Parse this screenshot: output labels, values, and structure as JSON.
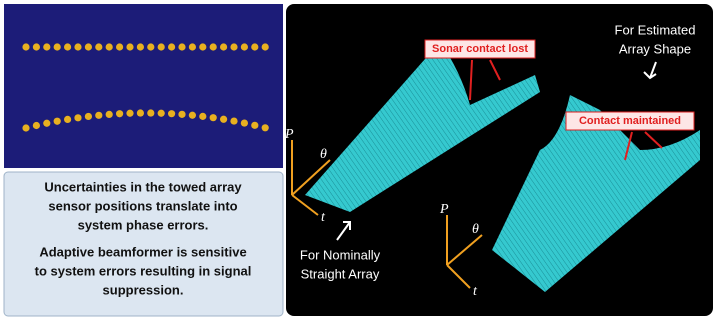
{
  "left_text": {
    "paragraph_1": [
      "Uncertainties in the towed array",
      "sensor positions translate into",
      "system phase errors."
    ],
    "paragraph_2": [
      "Adaptive beamformer is sensitive",
      "to system errors resulting in signal",
      "suppression."
    ]
  },
  "callouts": {
    "lost": "Sonar contact lost",
    "maintained": "Contact maintained"
  },
  "captions": {
    "estimated": [
      "For Estimated",
      "Array Shape"
    ],
    "straight": [
      "For Nominally",
      "Straight Array"
    ]
  },
  "axes": {
    "p": "P",
    "theta": "θ",
    "t": "t"
  }
}
